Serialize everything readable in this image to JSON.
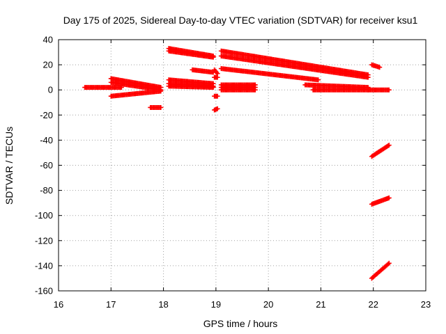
{
  "chart_data": {
    "type": "scatter",
    "title": "Day 175 of 2025, Sidereal Day-to-day VTEC variation (SDTVAR) for receiver ksu1",
    "xlabel": "GPS time / hours",
    "ylabel": "SDTVAR / TECUs",
    "xlim": [
      16,
      23
    ],
    "ylim": [
      -160,
      40
    ],
    "xticks": [
      16,
      17,
      18,
      19,
      20,
      21,
      22,
      23
    ],
    "yticks": [
      -160,
      -140,
      -120,
      -100,
      -80,
      -60,
      -40,
      -20,
      0,
      20,
      40
    ],
    "grid": true,
    "marker_color": "#ff0000",
    "segments": [
      {
        "x": [
          16.5,
          17.2
        ],
        "y": [
          2,
          2
        ]
      },
      {
        "x": [
          17.0,
          17.95
        ],
        "y": [
          9,
          2
        ]
      },
      {
        "x": [
          17.0,
          17.95
        ],
        "y": [
          6,
          0
        ]
      },
      {
        "x": [
          17.0,
          17.95
        ],
        "y": [
          -5,
          -1
        ]
      },
      {
        "x": [
          17.75,
          17.95
        ],
        "y": [
          -14,
          -14
        ]
      },
      {
        "x": [
          18.1,
          18.95
        ],
        "y": [
          33,
          27
        ]
      },
      {
        "x": [
          18.1,
          18.95
        ],
        "y": [
          31,
          26
        ]
      },
      {
        "x": [
          18.1,
          18.95
        ],
        "y": [
          8,
          5
        ]
      },
      {
        "x": [
          18.1,
          18.95
        ],
        "y": [
          5,
          3
        ]
      },
      {
        "x": [
          18.1,
          18.95
        ],
        "y": [
          3,
          2
        ]
      },
      {
        "x": [
          18.55,
          18.95
        ],
        "y": [
          16,
          14
        ]
      },
      {
        "x": [
          18.97,
          19.03
        ],
        "y": [
          16,
          13
        ]
      },
      {
        "x": [
          18.97,
          19.03
        ],
        "y": [
          10,
          10
        ]
      },
      {
        "x": [
          18.97,
          19.03
        ],
        "y": [
          -5,
          -5
        ]
      },
      {
        "x": [
          18.97,
          19.03
        ],
        "y": [
          -16,
          -15
        ]
      },
      {
        "x": [
          19.1,
          21.9
        ],
        "y": [
          31,
          12
        ]
      },
      {
        "x": [
          19.1,
          21.9
        ],
        "y": [
          27,
          10
        ]
      },
      {
        "x": [
          19.1,
          20.95
        ],
        "y": [
          17,
          8
        ]
      },
      {
        "x": [
          19.1,
          19.75
        ],
        "y": [
          4,
          4
        ]
      },
      {
        "x": [
          19.1,
          19.75
        ],
        "y": [
          2,
          2
        ]
      },
      {
        "x": [
          19.1,
          19.75
        ],
        "y": [
          0,
          0
        ]
      },
      {
        "x": [
          20.7,
          21.9
        ],
        "y": [
          4,
          2
        ]
      },
      {
        "x": [
          20.85,
          21.9
        ],
        "y": [
          0,
          0
        ]
      },
      {
        "x": [
          21.9,
          22.3
        ],
        "y": [
          0,
          0
        ]
      },
      {
        "x": [
          21.97,
          22.12
        ],
        "y": [
          20,
          18
        ]
      },
      {
        "x": [
          21.97,
          22.3
        ],
        "y": [
          -53,
          -44
        ]
      },
      {
        "x": [
          21.97,
          22.3
        ],
        "y": [
          -91,
          -86
        ]
      },
      {
        "x": [
          21.97,
          22.3
        ],
        "y": [
          -150,
          -138
        ]
      }
    ]
  }
}
